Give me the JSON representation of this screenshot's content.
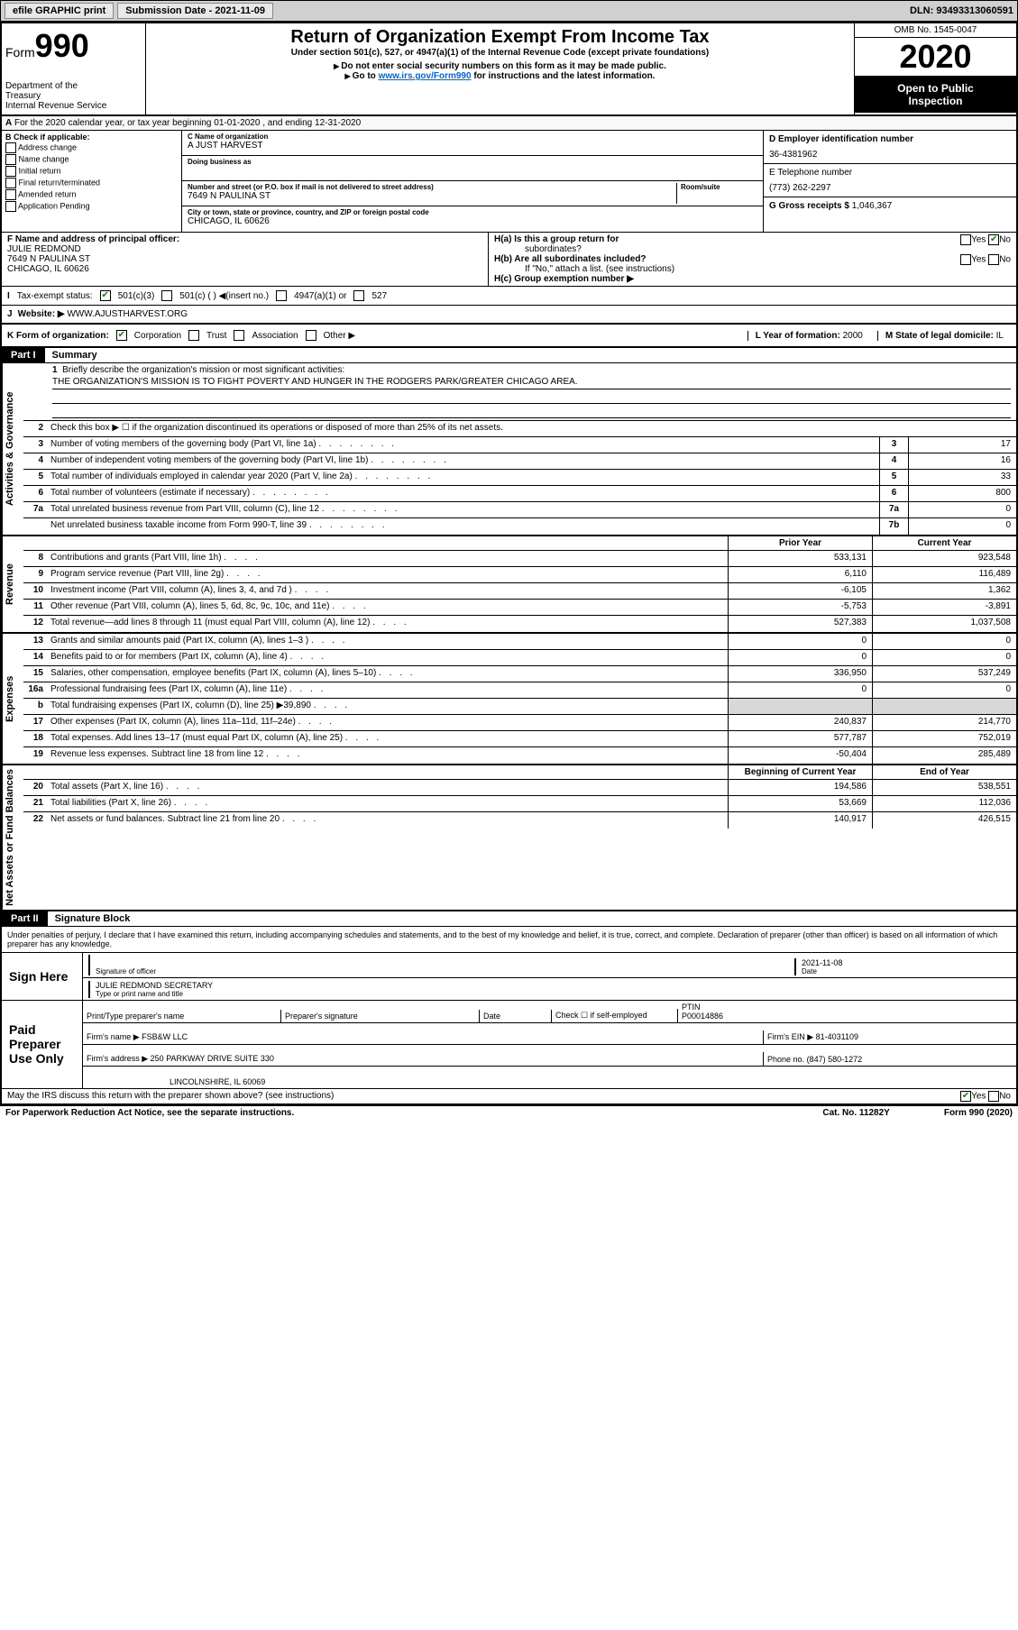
{
  "topbar": {
    "efile": "efile GRAPHIC print",
    "submission_label": "Submission Date - 2021-11-09",
    "dln": "DLN: 93493313060591"
  },
  "header": {
    "form_prefix": "Form",
    "form_number": "990",
    "dept1": "Department of the",
    "dept2": "Treasury",
    "dept3": "Internal Revenue Service",
    "title": "Return of Organization Exempt From Income Tax",
    "subtitle": "Under section 501(c), 527, or 4947(a)(1) of the Internal Revenue Code (except private foundations)",
    "note1": "Do not enter social security numbers on this form as it may be made public.",
    "note2_pre": "Go to ",
    "note2_link": "www.irs.gov/Form990",
    "note2_post": " for instructions and the latest information.",
    "omb": "OMB No. 1545-0047",
    "year": "2020",
    "open1": "Open to Public",
    "open2": "Inspection"
  },
  "period": {
    "text": "For the 2020 calendar year, or tax year beginning 01-01-2020     , and ending 12-31-2020"
  },
  "secB": {
    "label": "B Check if applicable:",
    "opts": [
      "Address change",
      "Name change",
      "Initial return",
      "Final return/terminated",
      "Amended return",
      "Application Pending"
    ]
  },
  "secC": {
    "name_lbl": "C Name of organization",
    "name": "A JUST HARVEST",
    "dba_lbl": "Doing business as",
    "dba": "",
    "addr_lbl": "Number and street (or P.O. box if mail is not delivered to street address)",
    "addr": "7649 N PAULINA ST",
    "room_lbl": "Room/suite",
    "city_lbl": "City or town, state or province, country, and ZIP or foreign postal code",
    "city": "CHICAGO, IL  60626"
  },
  "secD": {
    "ein_lbl": "D Employer identification number",
    "ein": "36-4381962",
    "phone_lbl": "E Telephone number",
    "phone": "(773) 262-2297",
    "gross_lbl": "G Gross receipts $",
    "gross": "1,046,367"
  },
  "secF": {
    "lbl": "F Name and address of principal officer:",
    "name": "JULIE REDMOND",
    "addr": "7649 N PAULINA ST",
    "city": "CHICAGO, IL  60626"
  },
  "secH": {
    "ha": "H(a)  Is this a group return for",
    "ha2": "subordinates?",
    "hb": "H(b)  Are all subordinates included?",
    "hb_note": "If \"No,\" attach a list. (see instructions)",
    "hc": "H(c)  Group exemption number ▶"
  },
  "secI": {
    "lbl": "Tax-exempt status:",
    "opt1": "501(c)(3)",
    "opt2": "501(c) (  ) ◀(insert no.)",
    "opt3": "4947(a)(1) or",
    "opt4": "527"
  },
  "secJ": {
    "lbl": "Website: ▶",
    "val": "WWW.AJUSTHARVEST.ORG"
  },
  "secK": {
    "lbl": "K Form of organization:",
    "opts": [
      "Corporation",
      "Trust",
      "Association",
      "Other ▶"
    ],
    "l_lbl": "L Year of formation:",
    "l_val": "2000",
    "m_lbl": "M State of legal domicile:",
    "m_val": "IL"
  },
  "part1": {
    "label": "Part I",
    "title": "Summary",
    "vert_gov": "Activities & Governance",
    "vert_rev": "Revenue",
    "vert_exp": "Expenses",
    "vert_net": "Net Assets or Fund Balances",
    "line1_lbl": "Briefly describe the organization's mission or most significant activities:",
    "mission": "THE ORGANIZATION'S MISSION IS TO FIGHT POVERTY AND HUNGER IN THE RODGERS PARK/GREATER CHICAGO AREA.",
    "line2": "Check this box ▶ ☐ if the organization discontinued its operations or disposed of more than 25% of its net assets.",
    "lines_gov": [
      {
        "n": "3",
        "d": "Number of voting members of the governing body (Part VI, line 1a)",
        "box": "3",
        "v": "17"
      },
      {
        "n": "4",
        "d": "Number of independent voting members of the governing body (Part VI, line 1b)",
        "box": "4",
        "v": "16"
      },
      {
        "n": "5",
        "d": "Total number of individuals employed in calendar year 2020 (Part V, line 2a)",
        "box": "5",
        "v": "33"
      },
      {
        "n": "6",
        "d": "Total number of volunteers (estimate if necessary)",
        "box": "6",
        "v": "800"
      },
      {
        "n": "7a",
        "d": "Total unrelated business revenue from Part VIII, column (C), line 12",
        "box": "7a",
        "v": "0"
      },
      {
        "n": "",
        "d": "Net unrelated business taxable income from Form 990-T, line 39",
        "box": "7b",
        "v": "0"
      }
    ],
    "py_hdr": "Prior Year",
    "cy_hdr": "Current Year",
    "lines_rev": [
      {
        "n": "8",
        "d": "Contributions and grants (Part VIII, line 1h)",
        "py": "533,131",
        "cy": "923,548"
      },
      {
        "n": "9",
        "d": "Program service revenue (Part VIII, line 2g)",
        "py": "6,110",
        "cy": "116,489"
      },
      {
        "n": "10",
        "d": "Investment income (Part VIII, column (A), lines 3, 4, and 7d )",
        "py": "-6,105",
        "cy": "1,362"
      },
      {
        "n": "11",
        "d": "Other revenue (Part VIII, column (A), lines 5, 6d, 8c, 9c, 10c, and 11e)",
        "py": "-5,753",
        "cy": "-3,891"
      },
      {
        "n": "12",
        "d": "Total revenue—add lines 8 through 11 (must equal Part VIII, column (A), line 12)",
        "py": "527,383",
        "cy": "1,037,508"
      }
    ],
    "lines_exp": [
      {
        "n": "13",
        "d": "Grants and similar amounts paid (Part IX, column (A), lines 1–3 )",
        "py": "0",
        "cy": "0"
      },
      {
        "n": "14",
        "d": "Benefits paid to or for members (Part IX, column (A), line 4)",
        "py": "0",
        "cy": "0"
      },
      {
        "n": "15",
        "d": "Salaries, other compensation, employee benefits (Part IX, column (A), lines 5–10)",
        "py": "336,950",
        "cy": "537,249"
      },
      {
        "n": "16a",
        "d": "Professional fundraising fees (Part IX, column (A), line 11e)",
        "py": "0",
        "cy": "0"
      },
      {
        "n": "b",
        "d": "Total fundraising expenses (Part IX, column (D), line 25) ▶39,890",
        "py": "",
        "cy": "",
        "shaded": true
      },
      {
        "n": "17",
        "d": "Other expenses (Part IX, column (A), lines 11a–11d, 11f–24e)",
        "py": "240,837",
        "cy": "214,770"
      },
      {
        "n": "18",
        "d": "Total expenses. Add lines 13–17 (must equal Part IX, column (A), line 25)",
        "py": "577,787",
        "cy": "752,019"
      },
      {
        "n": "19",
        "d": "Revenue less expenses. Subtract line 18 from line 12",
        "py": "-50,404",
        "cy": "285,489"
      }
    ],
    "by_hdr": "Beginning of Current Year",
    "ey_hdr": "End of Year",
    "lines_net": [
      {
        "n": "20",
        "d": "Total assets (Part X, line 16)",
        "py": "194,586",
        "cy": "538,551"
      },
      {
        "n": "21",
        "d": "Total liabilities (Part X, line 26)",
        "py": "53,669",
        "cy": "112,036"
      },
      {
        "n": "22",
        "d": "Net assets or fund balances. Subtract line 21 from line 20",
        "py": "140,917",
        "cy": "426,515"
      }
    ]
  },
  "part2": {
    "label": "Part II",
    "title": "Signature Block",
    "intro": "Under penalties of perjury, I declare that I have examined this return, including accompanying schedules and statements, and to the best of my knowledge and belief, it is true, correct, and complete. Declaration of preparer (other than officer) is based on all information of which preparer has any knowledge.",
    "sign_here": "Sign Here",
    "sig_officer_lbl": "Signature of officer",
    "sig_date_lbl": "Date",
    "sig_date": "2021-11-08",
    "sig_name": "JULIE REDMOND SECRETARY",
    "sig_name_lbl": "Type or print name and title",
    "paid_prep": "Paid Preparer Use Only",
    "prep_name_lbl": "Print/Type preparer's name",
    "prep_sig_lbl": "Preparer's signature",
    "prep_date_lbl": "Date",
    "prep_check_lbl": "Check ☐ if self-employed",
    "prep_ptin_lbl": "PTIN",
    "prep_ptin": "P00014886",
    "firm_name_lbl": "Firm's name     ▶",
    "firm_name": "FSB&W LLC",
    "firm_ein_lbl": "Firm's EIN ▶",
    "firm_ein": "81-4031109",
    "firm_addr_lbl": "Firm's address ▶",
    "firm_addr1": "250 PARKWAY DRIVE SUITE 330",
    "firm_addr2": "LINCOLNSHIRE, IL  60069",
    "firm_phone_lbl": "Phone no.",
    "firm_phone": "(847) 580-1272",
    "discuss": "May the IRS discuss this return with the preparer shown above? (see instructions)",
    "paperwork": "For Paperwork Reduction Act Notice, see the separate instructions.",
    "catno": "Cat. No. 11282Y",
    "formfoot": "Form 990 (2020)"
  }
}
